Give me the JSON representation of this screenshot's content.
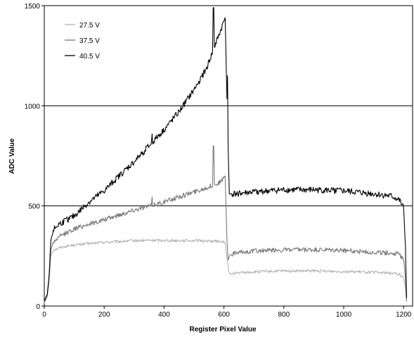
{
  "chart_data": {
    "type": "line",
    "title": "",
    "xlabel": "Register Pixel Value",
    "ylabel": "ADC Value",
    "xlim": [
      0,
      1230
    ],
    "ylim": [
      0,
      1500
    ],
    "xticks": [
      "0",
      "200",
      "400",
      "600",
      "800",
      "1000",
      "1200"
    ],
    "yticks": [
      "0",
      "500",
      "1000",
      "1500"
    ],
    "grid": "horizontal lines at 500 and 1000",
    "legend_position": "top-left",
    "series": [
      {
        "name": "27.5 V",
        "color": "#b4b4b4",
        "noise": 7,
        "points": [
          [
            0,
            15
          ],
          [
            10,
            45
          ],
          [
            16,
            120
          ],
          [
            22,
            250
          ],
          [
            30,
            280
          ],
          [
            60,
            295
          ],
          [
            100,
            305
          ],
          [
            150,
            312
          ],
          [
            200,
            318
          ],
          [
            250,
            322
          ],
          [
            300,
            326
          ],
          [
            350,
            328
          ],
          [
            400,
            328
          ],
          [
            450,
            327
          ],
          [
            500,
            327
          ],
          [
            550,
            325
          ],
          [
            590,
            322
          ],
          [
            604,
            315
          ],
          [
            610,
            240
          ],
          [
            616,
            175
          ],
          [
            620,
            160
          ],
          [
            640,
            165
          ],
          [
            700,
            170
          ],
          [
            800,
            175
          ],
          [
            900,
            175
          ],
          [
            1000,
            173
          ],
          [
            1100,
            168
          ],
          [
            1160,
            165
          ],
          [
            1185,
            160
          ],
          [
            1200,
            140
          ],
          [
            1206,
            90
          ],
          [
            1210,
            20
          ]
        ]
      },
      {
        "name": "37.5 V",
        "color": "#7a7a7a",
        "noise": 12,
        "spikes": [
          [
            115,
            385
          ],
          [
            360,
            545
          ],
          [
            565,
            800
          ]
        ],
        "points": [
          [
            0,
            20
          ],
          [
            10,
            55
          ],
          [
            16,
            150
          ],
          [
            22,
            280
          ],
          [
            30,
            320
          ],
          [
            60,
            355
          ],
          [
            100,
            385
          ],
          [
            150,
            410
          ],
          [
            200,
            430
          ],
          [
            250,
            455
          ],
          [
            300,
            480
          ],
          [
            350,
            500
          ],
          [
            400,
            520
          ],
          [
            450,
            545
          ],
          [
            500,
            570
          ],
          [
            550,
            595
          ],
          [
            590,
            620
          ],
          [
            604,
            650
          ],
          [
            610,
            330
          ],
          [
            614,
            230
          ],
          [
            620,
            255
          ],
          [
            640,
            265
          ],
          [
            700,
            275
          ],
          [
            800,
            280
          ],
          [
            900,
            280
          ],
          [
            1000,
            278
          ],
          [
            1100,
            268
          ],
          [
            1160,
            265
          ],
          [
            1185,
            258
          ],
          [
            1200,
            235
          ],
          [
            1206,
            140
          ],
          [
            1210,
            25
          ]
        ]
      },
      {
        "name": "40.5 V",
        "color": "#000000",
        "noise": 16,
        "spikes": [
          [
            115,
            450
          ],
          [
            360,
            860
          ],
          [
            565,
            1490
          ],
          [
            612,
            1150
          ]
        ],
        "points": [
          [
            0,
            25
          ],
          [
            10,
            60
          ],
          [
            16,
            150
          ],
          [
            22,
            330
          ],
          [
            30,
            380
          ],
          [
            50,
            410
          ],
          [
            100,
            450
          ],
          [
            150,
            520
          ],
          [
            200,
            575
          ],
          [
            250,
            650
          ],
          [
            300,
            720
          ],
          [
            350,
            800
          ],
          [
            400,
            880
          ],
          [
            450,
            970
          ],
          [
            500,
            1080
          ],
          [
            540,
            1180
          ],
          [
            570,
            1300
          ],
          [
            590,
            1380
          ],
          [
            604,
            1440
          ],
          [
            612,
            900
          ],
          [
            618,
            560
          ],
          [
            630,
            560
          ],
          [
            700,
            570
          ],
          [
            800,
            580
          ],
          [
            900,
            580
          ],
          [
            1000,
            575
          ],
          [
            1100,
            560
          ],
          [
            1160,
            548
          ],
          [
            1185,
            530
          ],
          [
            1200,
            490
          ],
          [
            1206,
            300
          ],
          [
            1210,
            40
          ]
        ]
      }
    ]
  }
}
